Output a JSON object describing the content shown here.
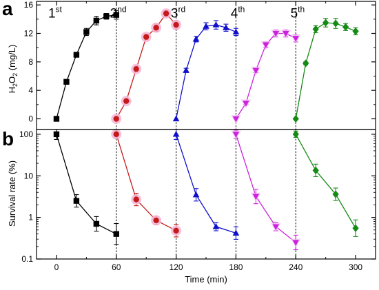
{
  "chart_data": [
    {
      "panel_label": "a",
      "type": "line",
      "ylabel_main": "H",
      "ylabel_sub1": "2",
      "ylabel_mid": "O",
      "ylabel_sub2": "2",
      "ylabel_unit": " (mg/L)",
      "xlim": [
        -20,
        320
      ],
      "ylim": [
        -1.5,
        16.5
      ],
      "yticks": [
        0,
        4,
        8,
        12,
        16
      ],
      "yticklabels": [
        "0",
        "4",
        "8",
        "12",
        "16"
      ],
      "cycle_dividers": [
        60,
        120,
        180,
        240
      ],
      "cycle_labels": [
        {
          "base": "1",
          "sup": "st",
          "x": 0,
          "y": 15.0
        },
        {
          "base": "2",
          "sup": "nd",
          "x": 62,
          "y": 15.0
        },
        {
          "base": "3",
          "sup": "rd",
          "x": 123,
          "y": 15.0
        },
        {
          "base": "4",
          "sup": "th",
          "x": 183,
          "y": 15.0
        },
        {
          "base": "5",
          "sup": "th",
          "x": 243,
          "y": 15.0
        }
      ],
      "series": [
        {
          "color": "#000000",
          "marker": "square",
          "x": [
            0,
            10,
            20,
            30,
            40,
            50,
            60
          ],
          "y": [
            0,
            5.2,
            9.0,
            12.2,
            13.8,
            14.4,
            14.6
          ],
          "err": [
            0,
            0,
            0.3,
            0.5,
            0.6,
            0.4,
            0.6
          ]
        },
        {
          "color": "#c41a1a",
          "marker": "circle",
          "halo": "#f4b6d6",
          "x": [
            60,
            70,
            80,
            90,
            100,
            110,
            120
          ],
          "y": [
            0,
            2.5,
            7.0,
            11.5,
            12.8,
            14.8,
            13.2
          ],
          "err": [
            0,
            0,
            0.3,
            0.4,
            0.5,
            0.4,
            0.6
          ]
        },
        {
          "color": "#1010cc",
          "marker": "triangle-up",
          "x": [
            120,
            130,
            140,
            150,
            160,
            170,
            180
          ],
          "y": [
            0,
            6.8,
            11.2,
            13.0,
            13.2,
            12.8,
            12.2
          ],
          "err": [
            0,
            0.3,
            0.4,
            0.5,
            0.6,
            0.5,
            0.5
          ]
        },
        {
          "color": "#cc22dd",
          "marker": "triangle-down",
          "x": [
            180,
            190,
            200,
            210,
            220,
            230,
            240
          ],
          "y": [
            0,
            2.2,
            6.8,
            10.4,
            12.0,
            12.0,
            11.3
          ],
          "err": [
            0,
            0.2,
            0.3,
            0.4,
            0.5,
            0.5,
            0.5
          ]
        },
        {
          "color": "#158a15",
          "marker": "diamond",
          "x": [
            240,
            250,
            260,
            270,
            280,
            290,
            300
          ],
          "y": [
            0,
            7.8,
            12.6,
            13.5,
            13.4,
            12.9,
            12.3
          ],
          "err": [
            0,
            0.2,
            0.5,
            0.6,
            0.7,
            0.5,
            0.5
          ]
        }
      ]
    },
    {
      "panel_label": "b",
      "type": "line",
      "ylabel": "Survival rate (%)",
      "xlabel": "Time (min)",
      "yscale": "log",
      "xlim": [
        -20,
        320
      ],
      "ylim": [
        0.1,
        130
      ],
      "yticks": [
        0.1,
        1,
        10,
        100
      ],
      "yticklabels": [
        "0.1",
        "1",
        "10",
        "100"
      ],
      "xticks": [
        0,
        60,
        120,
        180,
        240,
        300
      ],
      "xticklabels": [
        "0",
        "60",
        "120",
        "180",
        "240",
        "300"
      ],
      "cycle_dividers": [
        60,
        120,
        180,
        240
      ],
      "series": [
        {
          "color": "#000000",
          "marker": "square",
          "x": [
            0,
            20,
            40,
            60
          ],
          "y": [
            100,
            2.5,
            0.7,
            0.4
          ],
          "err": [
            0.25,
            0.3,
            0.35,
            0.5
          ]
        },
        {
          "color": "#c41a1a",
          "marker": "circle",
          "halo": "#f4b6d6",
          "x": [
            60,
            80,
            100,
            120
          ],
          "y": [
            100,
            2.7,
            0.85,
            0.48
          ],
          "err": [
            0.2,
            0.3,
            0.2,
            0.3
          ]
        },
        {
          "color": "#1010cc",
          "marker": "triangle-up",
          "x": [
            120,
            140,
            160,
            180
          ],
          "y": [
            100,
            3.5,
            0.6,
            0.42
          ],
          "err": [
            0.25,
            0.3,
            0.2,
            0.3
          ]
        },
        {
          "color": "#cc22dd",
          "marker": "triangle-down",
          "x": [
            180,
            200,
            220,
            240
          ],
          "y": [
            100,
            3.2,
            0.6,
            0.25
          ],
          "err": [
            0.2,
            0.35,
            0.2,
            0.35
          ]
        },
        {
          "color": "#158a15",
          "marker": "diamond",
          "x": [
            240,
            260,
            280,
            300
          ],
          "y": [
            100,
            13.5,
            3.6,
            0.55
          ],
          "err": [
            0.15,
            0.3,
            0.3,
            0.4
          ]
        }
      ]
    }
  ]
}
